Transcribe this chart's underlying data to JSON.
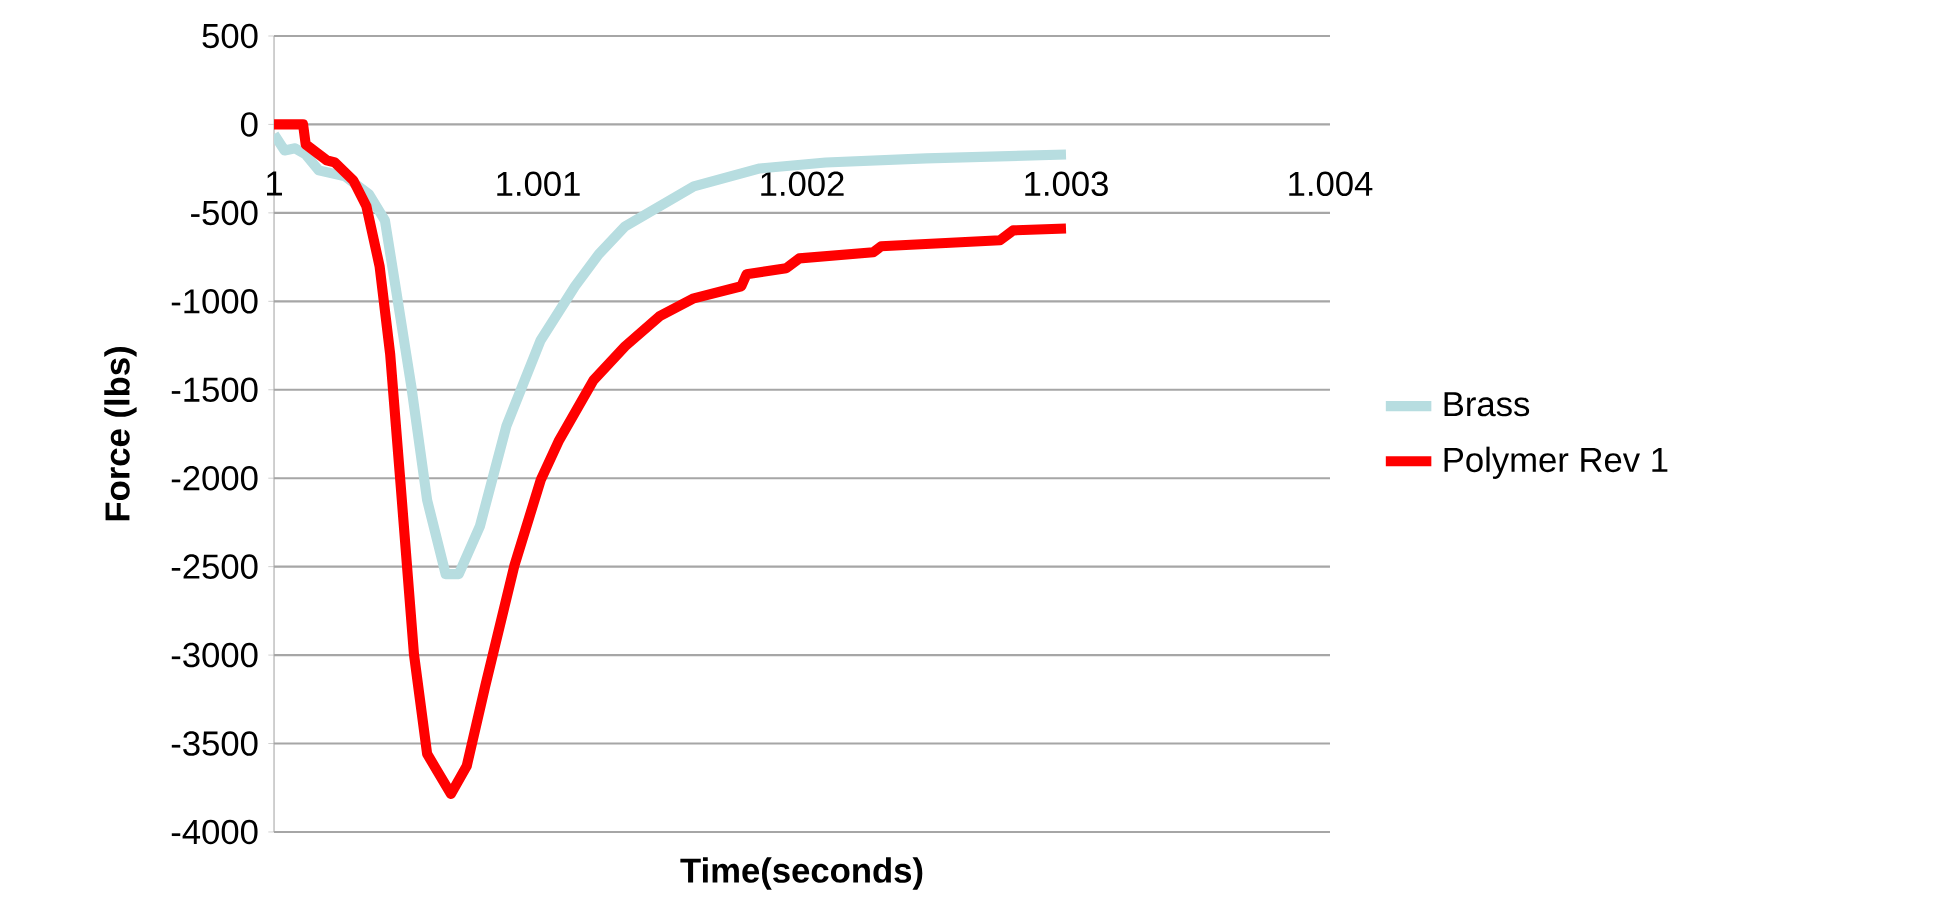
{
  "chart_data": {
    "type": "line",
    "xlabel": "Time(seconds)",
    "ylabel": "Force (lbs)",
    "xlim": [
      1,
      1.004
    ],
    "xticks": [
      1,
      1.001,
      1.002,
      1.003,
      1.004
    ],
    "ylim": [
      -4000,
      500
    ],
    "yticks": [
      -4000,
      -3500,
      -3000,
      -2500,
      -2000,
      -1500,
      -1000,
      -500,
      0,
      500
    ],
    "grid": "y",
    "legend": "right",
    "series": [
      {
        "name": "Brass",
        "color": "#b7dde0",
        "x": [
          1.0,
          1.00004,
          1.00008,
          1.00012,
          1.00017,
          1.00027,
          1.00036,
          1.00042,
          1.00046,
          1.00052,
          1.00058,
          1.00065,
          1.0007,
          1.00078,
          1.00088,
          1.00101,
          1.00114,
          1.00123,
          1.00133,
          1.00159,
          1.00184,
          1.00209,
          1.00247,
          1.003
        ],
        "values": [
          -56,
          -147,
          -135,
          -170,
          -260,
          -294,
          -395,
          -542,
          -915,
          -1480,
          -2124,
          -2542,
          -2542,
          -2271,
          -1706,
          -1220,
          -915,
          -734,
          -576,
          -350,
          -249,
          -215,
          -192,
          -170
        ]
      },
      {
        "name": "Polymer Rev 1",
        "color": "#ff0000",
        "x": [
          1.0,
          1.00011,
          1.00012,
          1.0002,
          1.00023,
          1.0003,
          1.00035,
          1.0004,
          1.00044,
          1.00048,
          1.00053,
          1.00058,
          1.00067,
          1.00073,
          1.0008,
          1.00091,
          1.00101,
          1.00108,
          1.00121,
          1.00133,
          1.00146,
          1.00159,
          1.00177,
          1.00179,
          1.00194,
          1.00199,
          1.00227,
          1.0023,
          1.00275,
          1.0028,
          1.003
        ],
        "values": [
          0,
          0,
          -113,
          -203,
          -215,
          -316,
          -463,
          -802,
          -1299,
          -2045,
          -2994,
          -3559,
          -3785,
          -3627,
          -3175,
          -2497,
          -2011,
          -1785,
          -1446,
          -1254,
          -1085,
          -983,
          -915,
          -847,
          -813,
          -757,
          -723,
          -689,
          -655,
          -599,
          -588
        ]
      }
    ]
  }
}
